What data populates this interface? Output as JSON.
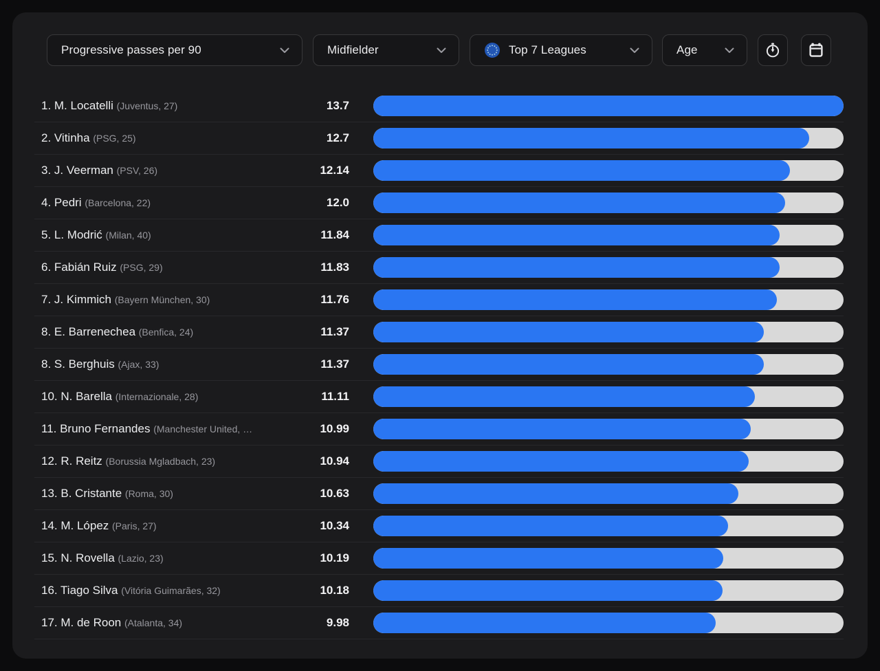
{
  "filters": {
    "metric": {
      "label": "Progressive passes per 90"
    },
    "position": {
      "label": "Midfielder"
    },
    "league": {
      "label": "Top 7 Leagues"
    },
    "age": {
      "label": "Age"
    }
  },
  "toolbar": {
    "buttons": [
      {
        "icon": "stopwatch-icon"
      },
      {
        "icon": "calendar-icon"
      }
    ]
  },
  "icons": {
    "metric_dropdown": "chevron-down-icon",
    "position_dropdown": "chevron-down-icon",
    "league_dropdown": "chevron-down-icon",
    "age_dropdown": "chevron-down-icon",
    "league_flag": "eu-flag-icon"
  },
  "colors": {
    "bar_fill": "#2a76f2",
    "bar_track": "#d9d9d9",
    "card_background": "#1b1b1d",
    "page_background": "#0c0c0d"
  },
  "chart_data": {
    "type": "bar",
    "orientation": "horizontal",
    "title": "Progressive passes per 90",
    "max_value": 13.7,
    "players": [
      {
        "rank": "1.",
        "name": "M. Locatelli",
        "meta": "(Juventus, 27)",
        "value": "13.7",
        "value_num": 13.7
      },
      {
        "rank": "2.",
        "name": "Vitinha",
        "meta": "(PSG, 25)",
        "value": "12.7",
        "value_num": 12.7
      },
      {
        "rank": "3.",
        "name": "J. Veerman",
        "meta": "(PSV, 26)",
        "value": "12.14",
        "value_num": 12.14
      },
      {
        "rank": "4.",
        "name": "Pedri",
        "meta": "(Barcelona, 22)",
        "value": "12.0",
        "value_num": 12.0
      },
      {
        "rank": "5.",
        "name": "L. Modrić",
        "meta": "(Milan, 40)",
        "value": "11.84",
        "value_num": 11.84
      },
      {
        "rank": "6.",
        "name": "Fabián Ruiz",
        "meta": "(PSG, 29)",
        "value": "11.83",
        "value_num": 11.83
      },
      {
        "rank": "7.",
        "name": "J. Kimmich",
        "meta": "(Bayern München, 30)",
        "value": "11.76",
        "value_num": 11.76
      },
      {
        "rank": "8.",
        "name": "E. Barrenechea",
        "meta": "(Benfica, 24)",
        "value": "11.37",
        "value_num": 11.37
      },
      {
        "rank": "8.",
        "name": "S. Berghuis",
        "meta": "(Ajax, 33)",
        "value": "11.37",
        "value_num": 11.37
      },
      {
        "rank": "10.",
        "name": "N. Barella",
        "meta": "(Internazionale, 28)",
        "value": "11.11",
        "value_num": 11.11
      },
      {
        "rank": "11.",
        "name": "Bruno Fernandes",
        "meta": "(Manchester United, …",
        "value": "10.99",
        "value_num": 10.99
      },
      {
        "rank": "12.",
        "name": "R. Reitz",
        "meta": "(Borussia Mgladbach, 23)",
        "value": "10.94",
        "value_num": 10.94
      },
      {
        "rank": "13.",
        "name": "B. Cristante",
        "meta": "(Roma, 30)",
        "value": "10.63",
        "value_num": 10.63
      },
      {
        "rank": "14.",
        "name": "M. López",
        "meta": "(Paris, 27)",
        "value": "10.34",
        "value_num": 10.34
      },
      {
        "rank": "15.",
        "name": "N. Rovella",
        "meta": "(Lazio, 23)",
        "value": "10.19",
        "value_num": 10.19
      },
      {
        "rank": "16.",
        "name": "Tiago Silva",
        "meta": "(Vitória Guimarães, 32)",
        "value": "10.18",
        "value_num": 10.18
      },
      {
        "rank": "17.",
        "name": "M. de Roon",
        "meta": "(Atalanta, 34)",
        "value": "9.98",
        "value_num": 9.98
      }
    ]
  }
}
